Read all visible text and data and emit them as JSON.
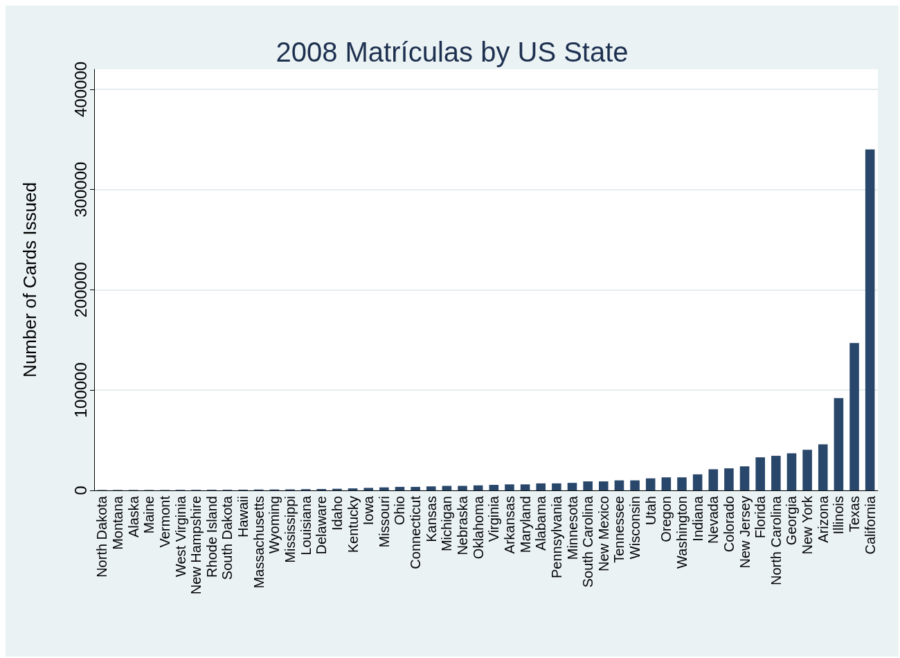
{
  "chart_data": {
    "type": "bar",
    "title": "2008 Matrículas by US State",
    "ylabel": "Number of Cards Issued",
    "categories": [
      "North Dakota",
      "Montana",
      "Alaska",
      "Maine",
      "Vermont",
      "West Virginia",
      "New Hampshire",
      "Rhode Island",
      "South Dakota",
      "Hawaii",
      "Massachusetts",
      "Wyoming",
      "Mississippi",
      "Louisiana",
      "Delaware",
      "Idaho",
      "Kentucky",
      "Iowa",
      "Missouri",
      "Ohio",
      "Connecticut",
      "Kansas",
      "Michigan",
      "Nebraska",
      "Oklahoma",
      "Virginia",
      "Arkansas",
      "Maryland",
      "Alabama",
      "Pennsylvania",
      "Minnesota",
      "South Carolina",
      "New Mexico",
      "Tennessee",
      "Wisconsin",
      "Utah",
      "Oregon",
      "Washington",
      "Indiana",
      "Nevada",
      "Colorado",
      "New Jersey",
      "Florida",
      "North Carolina",
      "Georgia",
      "New York",
      "Arizona",
      "Illinois",
      "Texas",
      "California"
    ],
    "values": [
      400,
      400,
      400,
      400,
      400,
      500,
      500,
      600,
      600,
      700,
      800,
      900,
      1000,
      1200,
      1400,
      1600,
      2000,
      2500,
      3000,
      3500,
      3500,
      4000,
      4500,
      4500,
      5000,
      5500,
      6000,
      6000,
      7000,
      7000,
      7500,
      9000,
      9000,
      10000,
      10000,
      12000,
      13000,
      13000,
      16000,
      21000,
      22000,
      24000,
      33000,
      34500,
      37000,
      40500,
      46000,
      92000,
      147000,
      340000
    ],
    "color": "#29476b",
    "ylim": [
      0,
      420000
    ],
    "yticks": [
      0,
      100000,
      200000,
      300000,
      400000
    ],
    "grid": "y"
  }
}
